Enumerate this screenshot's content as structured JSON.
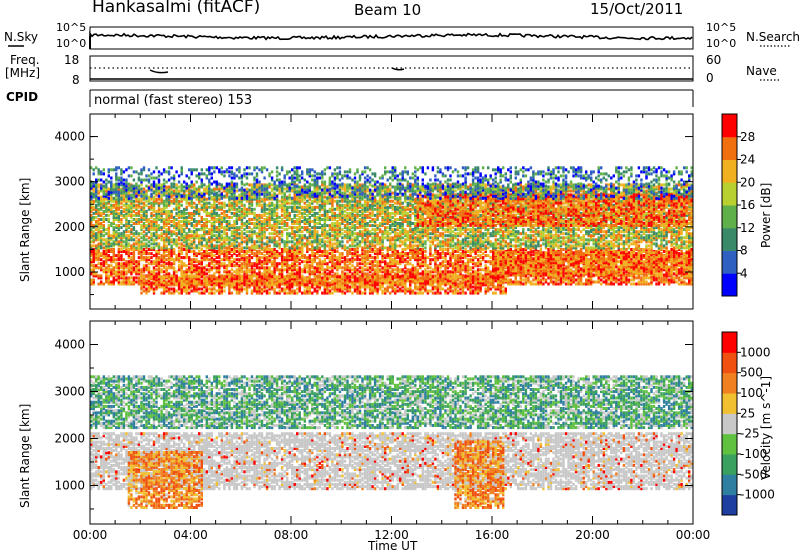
{
  "header": {
    "station": "Hankasalmi (fitACF)",
    "beam": "Beam 10",
    "date": "15/Oct/2011"
  },
  "side_labels": {
    "nsky": "N.Sky",
    "freq_line1": "Freq.",
    "freq_line2": "[MHz]",
    "cpid": "CPID",
    "nsearch": "N.Search",
    "nave": "Nave",
    "nsky_ticks": [
      "10^5",
      "10^0"
    ],
    "nsearch_ticks": [
      "10^5",
      "10^0"
    ],
    "freq_ticks": [
      "18",
      "8"
    ],
    "nave_ticks": [
      "60",
      "0"
    ],
    "mode": "normal (fast stereo) 153"
  },
  "chart_data": [
    {
      "type": "heatmap",
      "name": "power",
      "xlabel": "Time UT",
      "ylabel": "Slant Range [km]",
      "xlim": [
        "00:00",
        "24:00"
      ],
      "ylim": [
        180,
        4500
      ],
      "x_ticks": [
        "00:00",
        "04:00",
        "08:00",
        "12:00",
        "16:00",
        "20:00",
        "00:00"
      ],
      "y_ticks": [
        1000,
        2000,
        3000,
        4000
      ],
      "colorbar_label": "Power [dB]",
      "colorbar_ticks": [
        4,
        8,
        12,
        16,
        20,
        24,
        28
      ],
      "colorbar_colors": [
        "#0000ff",
        "#2f5fc0",
        "#3a8a6a",
        "#5fb04a",
        "#b8d030",
        "#f0b020",
        "#f07010",
        "#ff0000"
      ],
      "echo_regions": [
        {
          "t0": 0.0,
          "t1": 24.0,
          "r0": 700,
          "r1": 1500,
          "level": "high"
        },
        {
          "t0": 2.0,
          "t1": 16.5,
          "r0": 500,
          "r1": 900,
          "level": "high"
        },
        {
          "t0": 16.0,
          "t1": 24.0,
          "r0": 900,
          "r1": 1400,
          "level": "high"
        },
        {
          "t0": 0.0,
          "t1": 24.0,
          "r0": 1500,
          "r1": 2900,
          "level": "medium"
        },
        {
          "t0": 13.0,
          "t1": 24.0,
          "r0": 2000,
          "r1": 2700,
          "level": "high"
        },
        {
          "t0": 0.0,
          "t1": 24.0,
          "r0": 2600,
          "r1": 3300,
          "level": "low"
        }
      ]
    },
    {
      "type": "heatmap",
      "name": "velocity",
      "xlabel": "Time UT",
      "ylabel": "Slant Range [km]",
      "xlim": [
        "00:00",
        "24:00"
      ],
      "ylim": [
        180,
        4500
      ],
      "x_ticks": [
        "00:00",
        "04:00",
        "08:00",
        "12:00",
        "16:00",
        "20:00",
        "00:00"
      ],
      "y_ticks": [
        1000,
        2000,
        3000,
        4000
      ],
      "colorbar_label": "Velocity [m s^-1]",
      "colorbar_ticks": [
        1000,
        500,
        100,
        25,
        -25,
        -100,
        -500,
        -1000
      ],
      "colorbar_colors": [
        "#1e3fa0",
        "#2f7fa0",
        "#3aa060",
        "#60c040",
        "#c8c8c8",
        "#f0c030",
        "#f08020",
        "#f05010",
        "#ff0000"
      ],
      "echo_regions": [
        {
          "t0": 0.0,
          "t1": 24.0,
          "r0": 900,
          "r1": 2100,
          "level": "groundscatter"
        },
        {
          "t0": 1.5,
          "t1": 4.5,
          "r0": 500,
          "r1": 1700,
          "level": "negative"
        },
        {
          "t0": 14.5,
          "t1": 16.5,
          "r0": 500,
          "r1": 1900,
          "level": "negative"
        },
        {
          "t0": 0.0,
          "t1": 24.0,
          "r0": 2200,
          "r1": 3300,
          "level": "positive"
        }
      ]
    }
  ]
}
